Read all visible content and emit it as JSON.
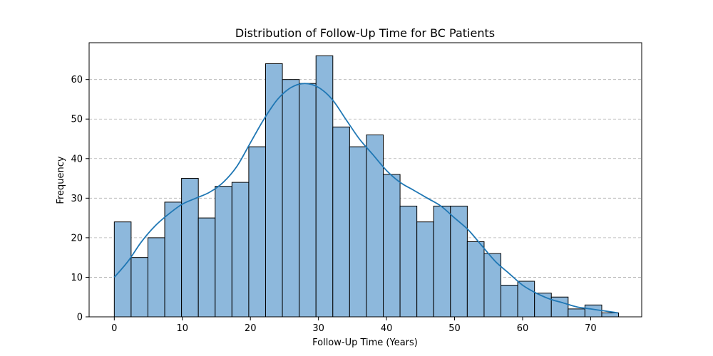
{
  "chart_data": {
    "type": "bar",
    "subtype": "histogram-with-kde",
    "title": "Distribution of Follow-Up Time for BC Patients",
    "xlabel": "Follow-Up Time (Years)",
    "ylabel": "Frequency",
    "xlim": [
      -3.7,
      77.5
    ],
    "ylim": [
      0,
      69.3
    ],
    "xticks": [
      0,
      10,
      20,
      30,
      40,
      50,
      60,
      70
    ],
    "yticks": [
      0,
      10,
      20,
      30,
      40,
      50,
      60
    ],
    "grid": "y-dashed",
    "bin_start": 0,
    "bin_width": 2.47,
    "values": [
      24,
      15,
      20,
      29,
      35,
      25,
      33,
      34,
      43,
      64,
      60,
      59,
      66,
      48,
      43,
      46,
      36,
      28,
      24,
      28,
      28,
      19,
      16,
      8,
      9,
      6,
      5,
      2,
      3,
      1
    ],
    "kde": {
      "x": [
        0,
        2,
        4,
        6,
        8,
        10,
        12,
        14,
        16,
        18,
        20,
        22,
        24,
        26,
        28,
        30,
        32,
        34,
        36,
        38,
        40,
        42,
        44,
        46,
        48,
        50,
        52,
        54,
        56,
        58,
        60,
        62,
        64,
        66,
        68,
        70,
        72,
        74
      ],
      "y": [
        10,
        14,
        19,
        23,
        26,
        28.5,
        30,
        31.5,
        34,
        38,
        44,
        50,
        55,
        58,
        59,
        58,
        55,
        50,
        45,
        41,
        37,
        34,
        32,
        30,
        28,
        25,
        22,
        18,
        14,
        11,
        8,
        6,
        4.5,
        3.5,
        2.5,
        2,
        1.5,
        1
      ],
      "color": "#1f77b4"
    },
    "bar_fill": "#8db8dc",
    "bar_edge": "#000000"
  }
}
